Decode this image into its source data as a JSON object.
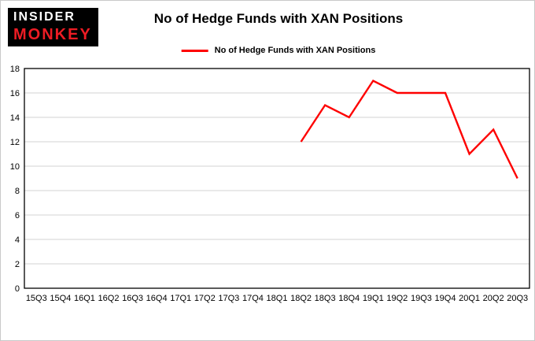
{
  "logo": {
    "line1": "INSIDER",
    "line2": "MONKEY"
  },
  "header": {
    "title": "No of Hedge Funds with XAN Positions",
    "legend_label": "No of Hedge Funds with XAN Positions"
  },
  "chart_data": {
    "type": "line",
    "title": "No of Hedge Funds with XAN Positions",
    "xlabel": "",
    "ylabel": "",
    "categories": [
      "15Q3",
      "15Q4",
      "16Q1",
      "16Q2",
      "16Q3",
      "16Q4",
      "17Q1",
      "17Q2",
      "17Q3",
      "17Q4",
      "18Q1",
      "18Q2",
      "18Q3",
      "18Q4",
      "19Q1",
      "19Q2",
      "19Q3",
      "19Q4",
      "20Q1",
      "20Q2",
      "20Q3"
    ],
    "series": [
      {
        "name": "No of Hedge Funds with XAN Positions",
        "color": "#fe0000",
        "values": [
          null,
          null,
          null,
          null,
          null,
          null,
          null,
          null,
          null,
          null,
          null,
          12,
          15,
          14,
          17,
          16,
          16,
          16,
          11,
          13,
          9
        ]
      }
    ],
    "ylim": [
      0,
      18
    ],
    "ytick_step": 2,
    "grid": "horizontal",
    "grid_color": "#d3d3d3",
    "axis_color": "#000000",
    "legend_position": "top",
    "line_width": 2.4,
    "tick_font_size": 11
  }
}
